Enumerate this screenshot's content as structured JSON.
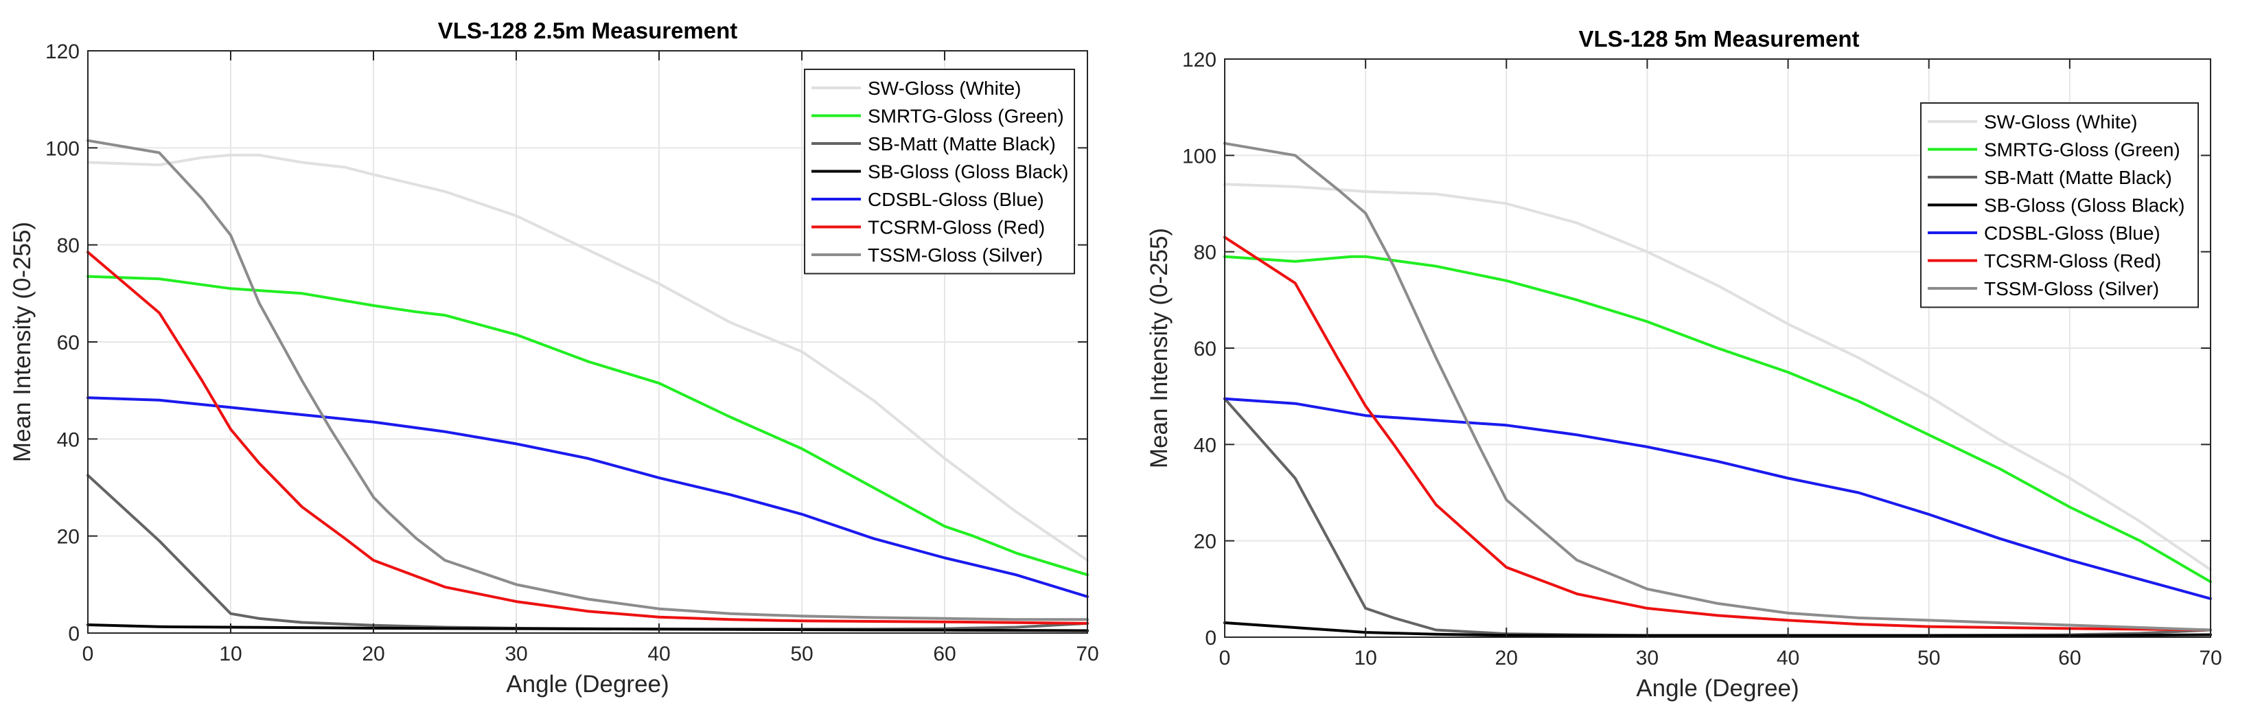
{
  "chart_data": [
    {
      "type": "line",
      "title": "VLS-128 2.5m Measurement",
      "xlabel": "Angle (Degree)",
      "ylabel": "Mean Intensity (0-255)",
      "xlim": [
        0,
        70
      ],
      "ylim": [
        0,
        120
      ],
      "xticks": [
        0,
        10,
        20,
        30,
        40,
        50,
        60,
        70
      ],
      "yticks": [
        0,
        20,
        40,
        60,
        80,
        100,
        120
      ],
      "grid": true,
      "legend_position": "top-right",
      "series": [
        {
          "name": "SW-Gloss (White)",
          "color": "#e0e0e0",
          "x": [
            0,
            5,
            8,
            10,
            12,
            15,
            18,
            20,
            25,
            30,
            35,
            40,
            45,
            50,
            55,
            60,
            65,
            70
          ],
          "y": [
            97,
            96.5,
            98,
            98.5,
            98.5,
            97,
            96,
            94.5,
            91,
            86,
            79,
            72,
            64,
            58,
            48,
            36,
            25,
            15
          ]
        },
        {
          "name": "SMRTG-Gloss (Green)",
          "color": "#22ee22",
          "x": [
            0,
            5,
            10,
            15,
            20,
            23,
            25,
            30,
            35,
            40,
            45,
            50,
            55,
            60,
            62,
            65,
            70
          ],
          "y": [
            73.5,
            73,
            71,
            70,
            67.5,
            66.2,
            65.5,
            61.5,
            56,
            51.5,
            44.5,
            38,
            30,
            22,
            20,
            16.5,
            12
          ]
        },
        {
          "name": "SB-Matt (Matte Black)",
          "color": "#646464",
          "x": [
            0,
            5,
            10,
            12,
            15,
            20,
            25,
            30,
            35,
            40,
            45,
            50,
            55,
            60,
            65,
            70
          ],
          "y": [
            32.5,
            19,
            4,
            3,
            2.2,
            1.6,
            1.2,
            1.0,
            0.9,
            0.8,
            0.8,
            0.8,
            0.8,
            0.9,
            1.2,
            2.0
          ]
        },
        {
          "name": "SB-Gloss (Gloss Black)",
          "color": "#000000",
          "x": [
            0,
            5,
            10,
            20,
            30,
            40,
            50,
            60,
            70
          ],
          "y": [
            1.7,
            1.3,
            1.2,
            1.0,
            0.9,
            0.8,
            0.7,
            0.6,
            0.5
          ]
        },
        {
          "name": "CDSBL-Gloss (Blue)",
          "color": "#1a1aee",
          "x": [
            0,
            5,
            10,
            15,
            20,
            25,
            30,
            35,
            40,
            45,
            50,
            55,
            60,
            65,
            70
          ],
          "y": [
            48.5,
            48,
            46.5,
            45,
            43.5,
            41.5,
            39,
            36,
            32,
            28.5,
            24.5,
            19.5,
            15.5,
            12,
            7.5
          ]
        },
        {
          "name": "TCSRM-Gloss (Red)",
          "color": "#ee1111",
          "x": [
            0,
            5,
            8,
            10,
            12,
            15,
            18,
            20,
            25,
            30,
            35,
            40,
            45,
            50,
            60,
            70
          ],
          "y": [
            78.5,
            66,
            52,
            42,
            35,
            26,
            19.5,
            15,
            9.5,
            6.5,
            4.5,
            3.3,
            2.8,
            2.5,
            2.3,
            2
          ]
        },
        {
          "name": "TSSM-Gloss (Silver)",
          "color": "#8c8c8c",
          "x": [
            0,
            5,
            8,
            10,
            12,
            15,
            17,
            20,
            21,
            23,
            25,
            30,
            35,
            40,
            45,
            50,
            55,
            60,
            65,
            70
          ],
          "y": [
            101.5,
            99,
            89.5,
            82,
            68,
            52,
            42,
            28,
            25,
            19.5,
            15,
            10,
            7,
            5,
            4,
            3.5,
            3.2,
            3,
            2.8,
            2.8
          ]
        }
      ]
    },
    {
      "type": "line",
      "title": "VLS-128 5m Measurement",
      "xlabel": "Angle (Degree)",
      "ylabel": "Mean Intensity (0-255)",
      "xlim": [
        0,
        70
      ],
      "ylim": [
        0,
        120
      ],
      "xticks": [
        0,
        10,
        20,
        30,
        40,
        50,
        60,
        70
      ],
      "yticks": [
        0,
        20,
        40,
        60,
        80,
        100,
        120
      ],
      "grid": true,
      "legend_position": "top-right",
      "series": [
        {
          "name": "SW-Gloss (White)",
          "color": "#e0e0e0",
          "x": [
            0,
            5,
            10,
            15,
            20,
            25,
            30,
            35,
            40,
            45,
            50,
            55,
            60,
            65,
            70
          ],
          "y": [
            94,
            93.5,
            92.5,
            92,
            90,
            86,
            80,
            73,
            65,
            58,
            50,
            41,
            33,
            24,
            14
          ]
        },
        {
          "name": "SMRTG-Gloss (Green)",
          "color": "#22ee22",
          "x": [
            0,
            5,
            9,
            10,
            15,
            20,
            25,
            30,
            35,
            40,
            45,
            50,
            55,
            60,
            65,
            70
          ],
          "y": [
            79,
            78,
            79,
            79,
            77,
            74,
            70,
            65.5,
            60,
            55,
            49,
            42,
            35,
            27,
            20,
            11.5
          ]
        },
        {
          "name": "SB-Matt (Matte Black)",
          "color": "#646464",
          "x": [
            0,
            5,
            10,
            12,
            15,
            20,
            25,
            30,
            40,
            50,
            60,
            65,
            70
          ],
          "y": [
            49.5,
            33,
            6,
            4,
            1.5,
            0.7,
            0.5,
            0.4,
            0.4,
            0.4,
            0.5,
            0.8,
            1.5
          ]
        },
        {
          "name": "SB-Gloss (Gloss Black)",
          "color": "#000000",
          "x": [
            0,
            5,
            10,
            15,
            20,
            30,
            40,
            50,
            60,
            70
          ],
          "y": [
            3,
            2,
            1,
            0.6,
            0.4,
            0.3,
            0.3,
            0.3,
            0.3,
            0.5
          ]
        },
        {
          "name": "CDSBL-Gloss (Blue)",
          "color": "#1a1aee",
          "x": [
            0,
            5,
            10,
            15,
            20,
            25,
            30,
            35,
            40,
            45,
            50,
            55,
            60,
            65,
            70
          ],
          "y": [
            49.5,
            48.5,
            46,
            45,
            44,
            42,
            39.5,
            36.5,
            33,
            30,
            25.5,
            20.5,
            16,
            12,
            8
          ]
        },
        {
          "name": "TCSRM-Gloss (Red)",
          "color": "#ee1111",
          "x": [
            0,
            5,
            8,
            10,
            12,
            15,
            20,
            25,
            30,
            35,
            40,
            45,
            50,
            60,
            70
          ],
          "y": [
            83,
            73.5,
            58,
            48,
            40,
            27.5,
            14.5,
            9,
            6,
            4.5,
            3.5,
            2.7,
            2.2,
            1.8,
            1.5
          ]
        },
        {
          "name": "TSSM-Gloss (Silver)",
          "color": "#8c8c8c",
          "x": [
            0,
            5,
            8,
            10,
            12,
            15,
            18,
            20,
            22,
            25,
            30,
            35,
            40,
            45,
            50,
            55,
            60,
            65,
            70
          ],
          "y": [
            102.5,
            100,
            93,
            88,
            77,
            58,
            40,
            28.5,
            23.5,
            16,
            10,
            7,
            5,
            4,
            3.5,
            3,
            2.5,
            2,
            1.5
          ]
        }
      ]
    }
  ]
}
